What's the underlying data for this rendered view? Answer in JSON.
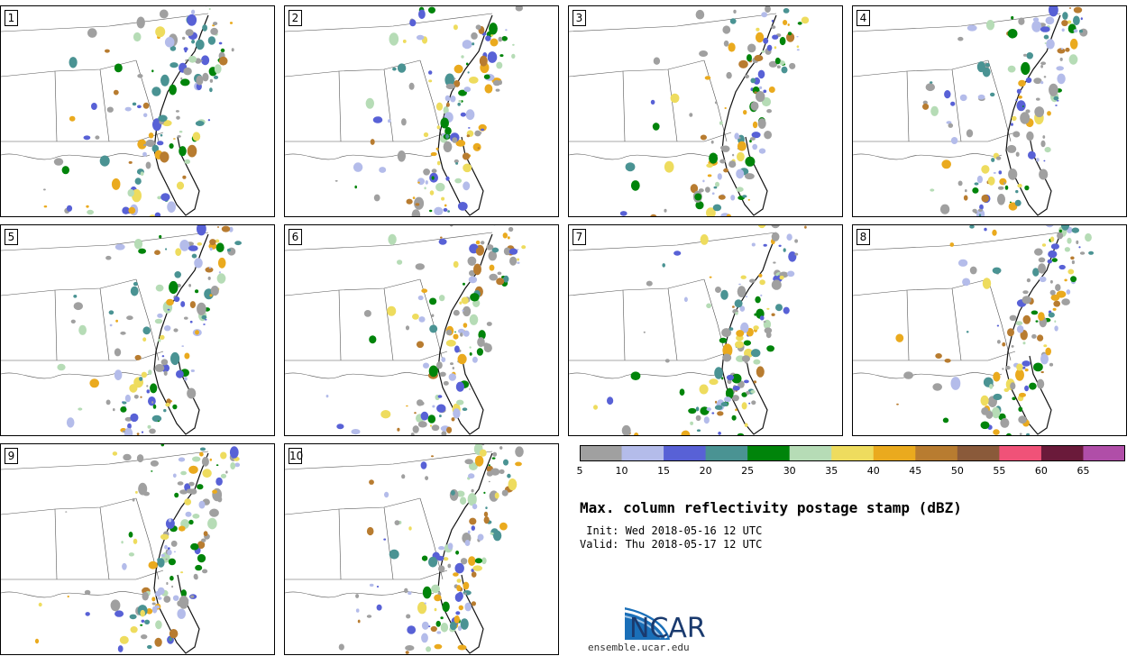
{
  "panels": [
    {
      "label": "1"
    },
    {
      "label": "2"
    },
    {
      "label": "3"
    },
    {
      "label": "4"
    },
    {
      "label": "5"
    },
    {
      "label": "6"
    },
    {
      "label": "7"
    },
    {
      "label": "8"
    },
    {
      "label": "9"
    },
    {
      "label": "10"
    }
  ],
  "colorbar": {
    "ticks": [
      "5",
      "10",
      "15",
      "20",
      "25",
      "30",
      "35",
      "40",
      "45",
      "50",
      "55",
      "60",
      "65"
    ],
    "colors": [
      "#a0a0a0",
      "#b4bcea",
      "#5861d6",
      "#4a9393",
      "#00840a",
      "#b6dcb6",
      "#eedc5e",
      "#eaaa1e",
      "#b87c30",
      "#8a5a3a",
      "#f05278",
      "#6a1a3a",
      "#b04ea8"
    ]
  },
  "title": "Max. column reflectivity postage stamp (dBZ)",
  "init": " Init: Wed 2018-05-16 12 UTC",
  "valid": "Valid: Thu 2018-05-17 12 UTC",
  "logo": {
    "name": "NCAR",
    "url": "ensemble.ucar.edu"
  }
}
